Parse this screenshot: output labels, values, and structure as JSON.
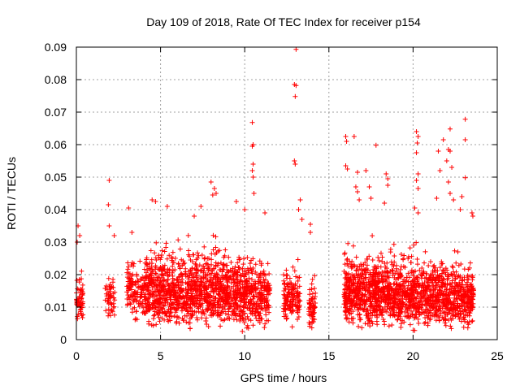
{
  "chart_data": {
    "type": "scatter",
    "title": "Day 109 of 2018, Rate Of TEC Index for receiver p154",
    "xlabel": "GPS time / hours",
    "ylabel": "ROTI / TECUs",
    "xlim": [
      0,
      25
    ],
    "ylim": [
      0,
      0.09
    ],
    "xticks": [
      0,
      5,
      10,
      15,
      20,
      25
    ],
    "yticks": [
      0,
      0.01,
      0.02,
      0.03,
      0.04,
      0.05,
      0.06,
      0.07,
      0.08,
      0.09
    ],
    "grid": true,
    "marker": "+",
    "series": [
      {
        "name": "ROTI",
        "color": "#ff0000",
        "density_profile": [
          {
            "x_start": 0.0,
            "x_end": 0.4,
            "y_min": 0.004,
            "y_max": 0.025,
            "density": 60
          },
          {
            "x_start": 1.7,
            "x_end": 2.3,
            "y_min": 0.003,
            "y_max": 0.027,
            "density": 50
          },
          {
            "x_start": 3.0,
            "x_end": 4.0,
            "y_min": 0.004,
            "y_max": 0.035,
            "density": 120
          },
          {
            "x_start": 4.0,
            "x_end": 7.0,
            "y_min": 0.002,
            "y_max": 0.038,
            "density": 600
          },
          {
            "x_start": 7.0,
            "x_end": 9.0,
            "y_min": 0.002,
            "y_max": 0.04,
            "density": 400
          },
          {
            "x_start": 9.0,
            "x_end": 11.5,
            "y_min": 0.002,
            "y_max": 0.036,
            "density": 450
          },
          {
            "x_start": 12.3,
            "x_end": 13.3,
            "y_min": 0.003,
            "y_max": 0.03,
            "density": 150
          },
          {
            "x_start": 13.8,
            "x_end": 14.2,
            "y_min": 0.002,
            "y_max": 0.025,
            "density": 60
          },
          {
            "x_start": 15.9,
            "x_end": 18.0,
            "y_min": 0.002,
            "y_max": 0.037,
            "density": 500
          },
          {
            "x_start": 18.0,
            "x_end": 21.0,
            "y_min": 0.002,
            "y_max": 0.036,
            "density": 600
          },
          {
            "x_start": 21.0,
            "x_end": 23.6,
            "y_min": 0.002,
            "y_max": 0.034,
            "density": 500
          }
        ],
        "outliers": [
          {
            "x": 0.1,
            "y": 0.035
          },
          {
            "x": 0.2,
            "y": 0.032
          },
          {
            "x": 0.05,
            "y": 0.03
          },
          {
            "x": 1.95,
            "y": 0.049
          },
          {
            "x": 1.9,
            "y": 0.0415
          },
          {
            "x": 1.95,
            "y": 0.035
          },
          {
            "x": 2.25,
            "y": 0.032
          },
          {
            "x": 3.1,
            "y": 0.0405
          },
          {
            "x": 3.3,
            "y": 0.033
          },
          {
            "x": 4.5,
            "y": 0.043
          },
          {
            "x": 4.7,
            "y": 0.0425
          },
          {
            "x": 5.4,
            "y": 0.041
          },
          {
            "x": 7.0,
            "y": 0.038
          },
          {
            "x": 7.4,
            "y": 0.041
          },
          {
            "x": 8.0,
            "y": 0.0485
          },
          {
            "x": 8.2,
            "y": 0.0465
          },
          {
            "x": 8.3,
            "y": 0.045
          },
          {
            "x": 8.1,
            "y": 0.0445
          },
          {
            "x": 9.5,
            "y": 0.0425
          },
          {
            "x": 10.0,
            "y": 0.04
          },
          {
            "x": 10.45,
            "y": 0.0668
          },
          {
            "x": 10.5,
            "y": 0.06
          },
          {
            "x": 10.45,
            "y": 0.0595
          },
          {
            "x": 10.5,
            "y": 0.054
          },
          {
            "x": 10.45,
            "y": 0.052
          },
          {
            "x": 10.5,
            "y": 0.05
          },
          {
            "x": 10.55,
            "y": 0.045
          },
          {
            "x": 11.2,
            "y": 0.039
          },
          {
            "x": 13.05,
            "y": 0.0893
          },
          {
            "x": 12.95,
            "y": 0.0785
          },
          {
            "x": 13.05,
            "y": 0.0782
          },
          {
            "x": 13.0,
            "y": 0.0748
          },
          {
            "x": 12.95,
            "y": 0.055
          },
          {
            "x": 13.0,
            "y": 0.054
          },
          {
            "x": 13.3,
            "y": 0.043
          },
          {
            "x": 13.2,
            "y": 0.04
          },
          {
            "x": 13.4,
            "y": 0.037
          },
          {
            "x": 13.9,
            "y": 0.0355
          },
          {
            "x": 13.9,
            "y": 0.033
          },
          {
            "x": 16.0,
            "y": 0.0625
          },
          {
            "x": 16.05,
            "y": 0.061
          },
          {
            "x": 16.0,
            "y": 0.0535
          },
          {
            "x": 16.1,
            "y": 0.0525
          },
          {
            "x": 16.5,
            "y": 0.0625
          },
          {
            "x": 16.7,
            "y": 0.0515
          },
          {
            "x": 16.6,
            "y": 0.047
          },
          {
            "x": 16.7,
            "y": 0.0455
          },
          {
            "x": 16.8,
            "y": 0.043
          },
          {
            "x": 17.2,
            "y": 0.052
          },
          {
            "x": 17.4,
            "y": 0.047
          },
          {
            "x": 17.5,
            "y": 0.0435
          },
          {
            "x": 17.8,
            "y": 0.0598
          },
          {
            "x": 18.4,
            "y": 0.051
          },
          {
            "x": 18.5,
            "y": 0.0495
          },
          {
            "x": 18.5,
            "y": 0.0475
          },
          {
            "x": 18.3,
            "y": 0.042
          },
          {
            "x": 20.2,
            "y": 0.064
          },
          {
            "x": 20.3,
            "y": 0.0625
          },
          {
            "x": 20.25,
            "y": 0.0605
          },
          {
            "x": 20.2,
            "y": 0.0575
          },
          {
            "x": 20.3,
            "y": 0.051
          },
          {
            "x": 20.2,
            "y": 0.049
          },
          {
            "x": 20.3,
            "y": 0.0465
          },
          {
            "x": 20.1,
            "y": 0.0405
          },
          {
            "x": 20.3,
            "y": 0.039
          },
          {
            "x": 21.5,
            "y": 0.058
          },
          {
            "x": 21.6,
            "y": 0.052
          },
          {
            "x": 21.4,
            "y": 0.0435
          },
          {
            "x": 21.8,
            "y": 0.0615
          },
          {
            "x": 22.2,
            "y": 0.0648
          },
          {
            "x": 22.1,
            "y": 0.0585
          },
          {
            "x": 22.2,
            "y": 0.058
          },
          {
            "x": 22.0,
            "y": 0.055
          },
          {
            "x": 22.3,
            "y": 0.053
          },
          {
            "x": 22.1,
            "y": 0.0485
          },
          {
            "x": 22.2,
            "y": 0.045
          },
          {
            "x": 22.4,
            "y": 0.043
          },
          {
            "x": 22.9,
            "y": 0.044
          },
          {
            "x": 22.8,
            "y": 0.04
          },
          {
            "x": 23.1,
            "y": 0.0678
          },
          {
            "x": 23.1,
            "y": 0.0615
          },
          {
            "x": 23.1,
            "y": 0.0498
          },
          {
            "x": 23.5,
            "y": 0.039
          },
          {
            "x": 23.55,
            "y": 0.038
          }
        ]
      }
    ]
  }
}
